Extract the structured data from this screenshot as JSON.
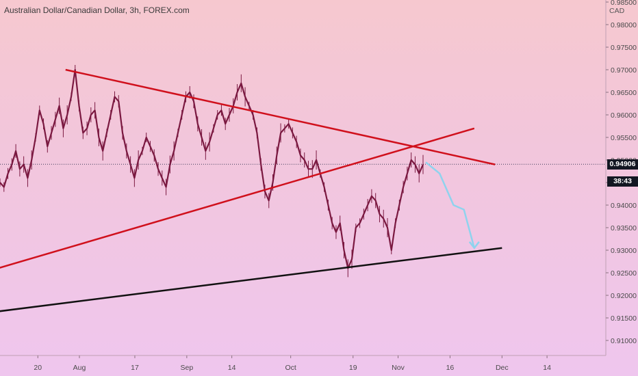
{
  "header": {
    "title": "Australian Dollar/Canadian Dollar, 3h, FOREX.com",
    "currency": "CAD"
  },
  "price_tags": {
    "last": "0.94906",
    "timer": "38:43"
  },
  "colors": {
    "trendline": "#d0101c",
    "support": "#111111",
    "forecast": "#8fd3ee",
    "candles": "#7a1840",
    "tag_bg": "#131722"
  },
  "chart_data": {
    "type": "line",
    "title": "Australian Dollar/Canadian Dollar, 3h, FOREX.com",
    "ylabel": "CAD",
    "ylim": [
      0.905,
      0.985
    ],
    "x_ticks": [
      "20",
      "Aug",
      "17",
      "Sep",
      "14",
      "Oct",
      "19",
      "Nov",
      "16",
      "Dec",
      "14"
    ],
    "y_ticks": [
      "0.98500",
      "0.98000",
      "0.97500",
      "0.97000",
      "0.96500",
      "0.96000",
      "0.95500",
      "0.95000",
      "0.94500",
      "0.94000",
      "0.93500",
      "0.93000",
      "0.92500",
      "0.92000",
      "0.91500",
      "0.91000"
    ],
    "last_price": 0.94906,
    "series": [
      {
        "values": [
          0.945,
          0.944,
          0.947,
          0.949,
          0.952,
          0.948,
          0.949,
          0.946,
          0.95,
          0.955,
          0.961,
          0.958,
          0.953,
          0.956,
          0.959,
          0.962,
          0.957,
          0.96,
          0.964,
          0.97,
          0.962,
          0.956,
          0.957,
          0.96,
          0.961,
          0.955,
          0.952,
          0.956,
          0.96,
          0.964,
          0.963,
          0.956,
          0.952,
          0.949,
          0.946,
          0.95,
          0.952,
          0.955,
          0.953,
          0.951,
          0.948,
          0.946,
          0.944,
          0.949,
          0.952,
          0.956,
          0.96,
          0.964,
          0.965,
          0.963,
          0.958,
          0.955,
          0.952,
          0.954,
          0.957,
          0.96,
          0.961,
          0.958,
          0.96,
          0.962,
          0.965,
          0.967,
          0.964,
          0.962,
          0.96,
          0.956,
          0.949,
          0.943,
          0.941,
          0.945,
          0.951,
          0.956,
          0.957,
          0.958,
          0.956,
          0.954,
          0.951,
          0.95,
          0.948,
          0.948,
          0.95,
          0.947,
          0.944,
          0.94,
          0.936,
          0.934,
          0.936,
          0.93,
          0.926,
          0.928,
          0.935,
          0.936,
          0.938,
          0.94,
          0.942,
          0.941,
          0.938,
          0.937,
          0.935,
          0.93,
          0.936,
          0.94,
          0.944,
          0.947,
          0.95,
          0.949,
          0.947,
          0.949
        ]
      }
    ],
    "trendlines": [
      {
        "name": "descending-resistance",
        "x": [
          "Jul 28",
          "Nov 29"
        ],
        "y": [
          0.97,
          0.949
        ],
        "color": "#d0101c"
      },
      {
        "name": "ascending-trendline",
        "x": [
          "Jun 3",
          "Nov 23"
        ],
        "y": [
          0.918,
          0.957
        ],
        "color": "#d0101c"
      },
      {
        "name": "support",
        "x": [
          "Jun 3",
          "Dec 1"
        ],
        "y": [
          0.913,
          0.9305
        ],
        "color": "#111111"
      }
    ],
    "forecast": {
      "x": [
        "Nov 9",
        "Nov 13",
        "Nov 17",
        "Nov 20",
        "Nov 23"
      ],
      "y": [
        0.9495,
        0.947,
        0.94,
        0.939,
        0.9305
      ],
      "color": "#8fd3ee"
    },
    "grid": false
  }
}
